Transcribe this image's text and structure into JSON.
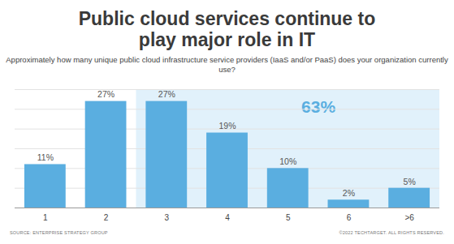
{
  "chart_data": {
    "type": "bar",
    "title": "Public cloud services continue to play major role in IT",
    "subtitle": "Approximately how many unique public cloud infrastructure service providers (IaaS and/or PaaS) does your organization currently use?",
    "categories": [
      "1",
      "2",
      "3",
      "4",
      "5",
      "6",
      ">6"
    ],
    "values": [
      11,
      27,
      27,
      19,
      10,
      2,
      5
    ],
    "value_labels": [
      "11%",
      "27%",
      "27%",
      "19%",
      "10%",
      "2%",
      "5%"
    ],
    "data_labels": true,
    "color": "#5aaee0",
    "ylim": [
      0,
      30
    ],
    "yticks": [
      0,
      5,
      10,
      15,
      20,
      25,
      30
    ],
    "grid": true,
    "tick_labels": "x",
    "highlight": {
      "categories": [
        "3",
        "4",
        "5",
        "6",
        ">6"
      ],
      "label": "63%",
      "color": "#e1f1fb"
    },
    "source": "SOURCE: ENTERPRISE STRATEGY GROUP",
    "credit": "©2022 TECHTARGET. ALL RIGHTS RESERVED."
  }
}
